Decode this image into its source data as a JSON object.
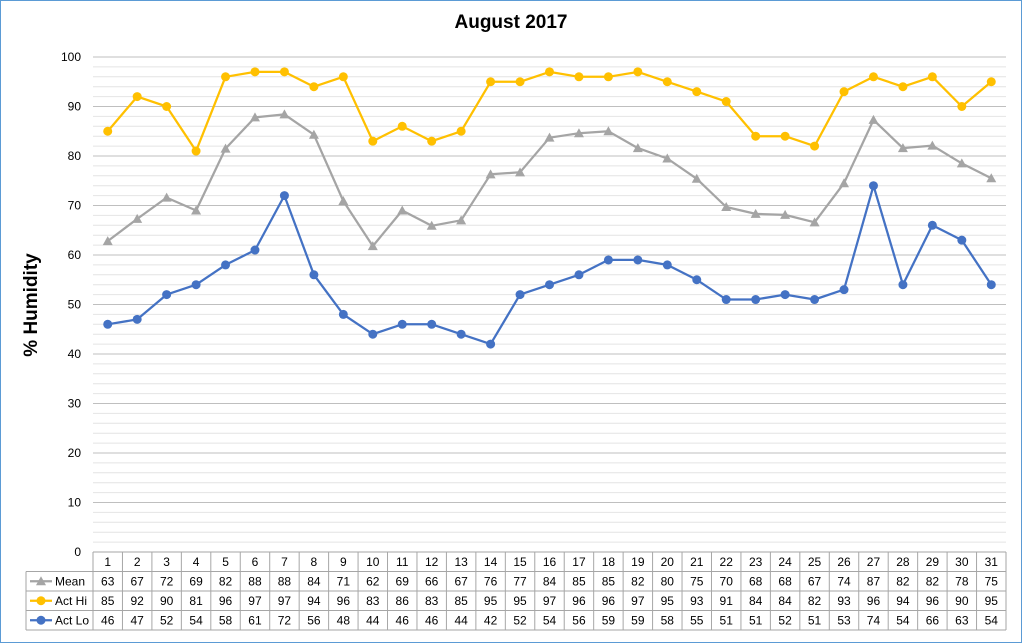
{
  "chart_data": {
    "type": "line",
    "title": "August 2017",
    "xlabel": "",
    "ylabel": "% Humidity",
    "ylim": [
      0,
      100
    ],
    "y_ticks": [
      0,
      10,
      20,
      30,
      40,
      50,
      60,
      70,
      80,
      90,
      100
    ],
    "minor_gridlines": true,
    "legend_placement": "data-table-left",
    "categories": [
      "1",
      "2",
      "3",
      "4",
      "5",
      "6",
      "7",
      "8",
      "9",
      "10",
      "11",
      "12",
      "13",
      "14",
      "15",
      "16",
      "17",
      "18",
      "19",
      "20",
      "21",
      "22",
      "23",
      "24",
      "25",
      "26",
      "27",
      "28",
      "29",
      "30",
      "31"
    ],
    "series": [
      {
        "name": "Mean",
        "color": "#a5a5a5",
        "marker": "triangle",
        "values": [
          62.8,
          67.3,
          71.6,
          69,
          81.5,
          87.8,
          88.4,
          84.3,
          70.9,
          61.8,
          69,
          65.9,
          67,
          76.3,
          76.7,
          83.7,
          84.6,
          85,
          81.6,
          79.5,
          75.4,
          69.7,
          68.3,
          68.1,
          66.6,
          74.5,
          87.3,
          81.6,
          82.1,
          78.5,
          75.5
        ],
        "labels": [
          63,
          67,
          72,
          69,
          82,
          88,
          88,
          84,
          71,
          62,
          69,
          66,
          67,
          76,
          77,
          84,
          85,
          85,
          82,
          80,
          75,
          70,
          68,
          68,
          67,
          74,
          87,
          82,
          82,
          78,
          75
        ]
      },
      {
        "name": "Act Hi",
        "color": "#ffc000",
        "marker": "circle",
        "values": [
          85,
          92,
          90,
          81,
          96,
          97,
          97,
          94,
          96,
          83,
          86,
          83,
          85,
          95,
          95,
          97,
          96,
          96,
          97,
          95,
          93,
          91,
          84,
          84,
          82,
          93,
          96,
          94,
          96,
          90,
          95
        ],
        "labels": [
          85,
          92,
          90,
          81,
          96,
          97,
          97,
          94,
          96,
          83,
          86,
          83,
          85,
          95,
          95,
          97,
          96,
          96,
          97,
          95,
          93,
          91,
          84,
          84,
          82,
          93,
          96,
          94,
          96,
          90,
          95
        ]
      },
      {
        "name": "Act Lo",
        "color": "#4472c4",
        "marker": "circle",
        "values": [
          46,
          47,
          52,
          54,
          58,
          61,
          72,
          56,
          48,
          44,
          46,
          46,
          44,
          42,
          52,
          54,
          56,
          59,
          59,
          58,
          55,
          51,
          51,
          52,
          51,
          53,
          74,
          54,
          66,
          63,
          54
        ],
        "labels": [
          46,
          47,
          52,
          54,
          58,
          61,
          72,
          56,
          48,
          44,
          46,
          46,
          44,
          42,
          52,
          54,
          56,
          59,
          59,
          58,
          55,
          51,
          51,
          52,
          51,
          53,
          74,
          54,
          66,
          63,
          54
        ]
      }
    ]
  }
}
